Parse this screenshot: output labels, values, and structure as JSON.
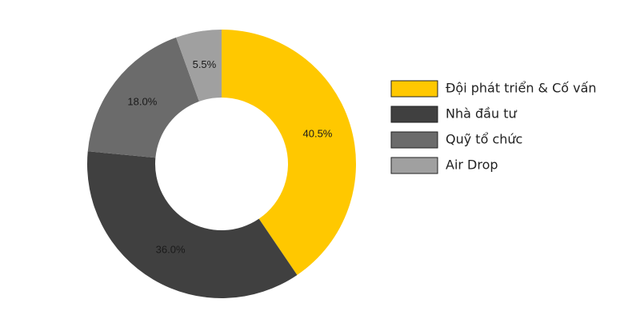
{
  "chart_data": {
    "type": "donut",
    "categories": [
      "Đội phát triển & Cố vấn",
      "Nhà đầu tư",
      "Quỹ tổ chức",
      "Air Drop"
    ],
    "values": [
      40.5,
      36.0,
      18.0,
      5.5
    ],
    "value_labels": [
      "40.5%",
      "36.0%",
      "18.0%",
      "5.5%"
    ],
    "colors": [
      "#ffc800",
      "#404040",
      "#6b6b6b",
      "#a0a0a0"
    ],
    "legend": "right"
  }
}
